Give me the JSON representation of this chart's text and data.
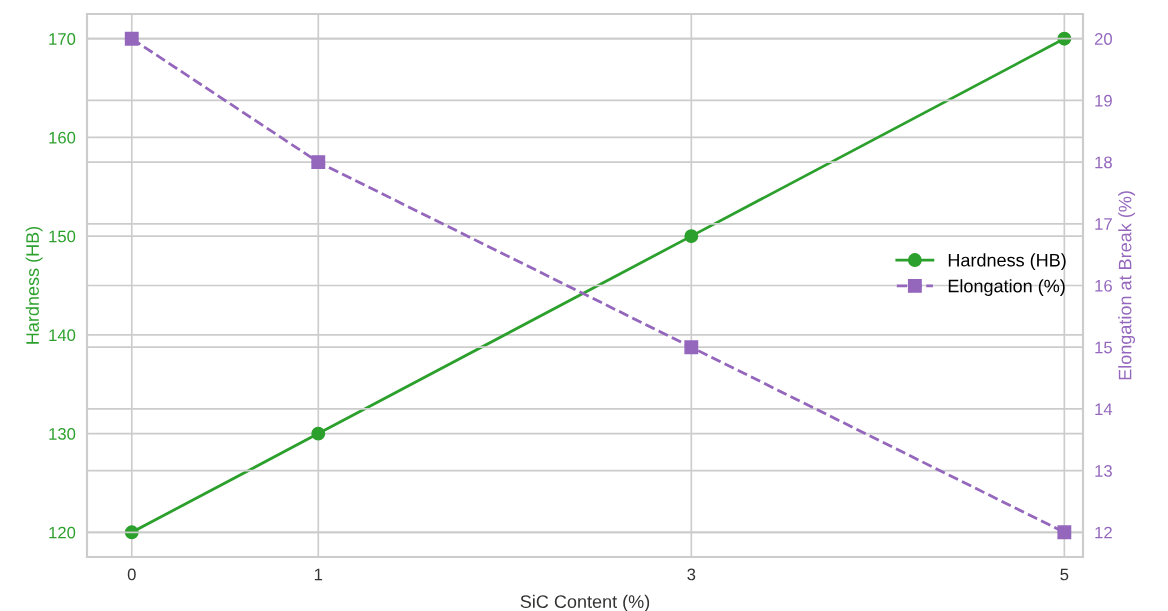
{
  "chart_data": {
    "type": "line",
    "xlabel": "SiC Content (%)",
    "ylabel": "Hardness (HB)",
    "y2label": "Elongation at Break (%)",
    "x": [
      0,
      1,
      3,
      5
    ],
    "xlim": [
      -0.24,
      5.1
    ],
    "xticks": [
      0,
      1,
      3,
      5
    ],
    "ylim": [
      117.5,
      172.5
    ],
    "yticks": [
      120,
      130,
      140,
      150,
      160,
      170
    ],
    "y2lim": [
      11.6,
      20.4
    ],
    "y2ticks": [
      12,
      13,
      14,
      15,
      16,
      17,
      18,
      19,
      20
    ],
    "grid": true,
    "legend": "right",
    "series": [
      {
        "name": "Hardness (HB)",
        "color": "#2ca02c",
        "values": [
          120,
          130,
          150,
          170
        ],
        "marker": "circle",
        "line_style": "solid"
      },
      {
        "name": "Elongation (%)",
        "color": "#9467bd",
        "values": [
          20,
          18,
          15,
          12
        ],
        "marker": "square",
        "line_style": "dashed",
        "axis": "y2"
      }
    ]
  }
}
